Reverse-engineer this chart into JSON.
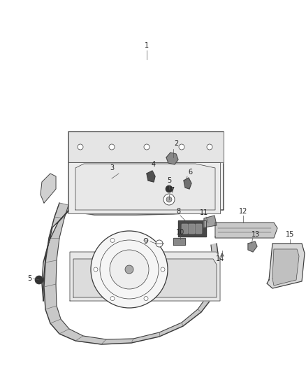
{
  "bg_color": "#ffffff",
  "fig_width": 4.38,
  "fig_height": 5.33,
  "dpi": 100,
  "line_color": "#3a3a3a",
  "label_fontsize": 7,
  "label_color": "#222222",
  "hatch_color": "#888888"
}
